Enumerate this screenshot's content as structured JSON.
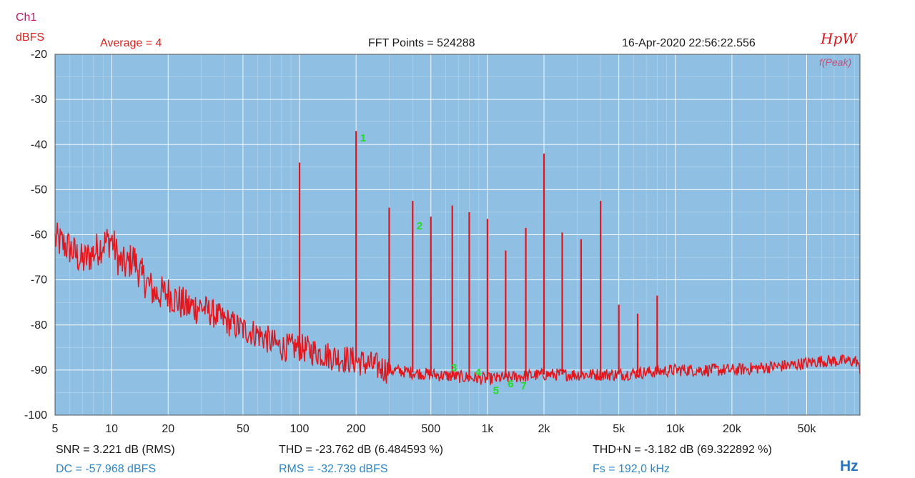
{
  "header": {
    "channel": "Ch1",
    "unit": "dBFS",
    "average": "Average = 4",
    "fft_points": "FFT Points = 524288",
    "timestamp": "16-Apr-2020 22:56:22.556",
    "logo": "HpW",
    "peak_label": "f(Peak)"
  },
  "stats": {
    "snr": "SNR = 3.221 dB (RMS)",
    "thd": "THD = -23.762 dB (6.484593 %)",
    "thdn": "THD+N = -3.182 dB (69.322892 %)",
    "dc": "DC = -57.968 dBFS",
    "rms": "RMS = -32.739 dBFS",
    "fs": "Fs = 192,0 kHz",
    "x_unit": "Hz"
  },
  "colors": {
    "plot_bg": "#8fbfe2",
    "grid": "#ffffff",
    "trace": "#e4161b",
    "marker": "#22dd22"
  },
  "chart_data": {
    "type": "line",
    "x_scale": "log",
    "xlim": [
      5,
      96000
    ],
    "ylim": [
      -100,
      -20
    ],
    "xlabel": "Hz",
    "ylabel": "dBFS",
    "y_ticks": [
      -20,
      -30,
      -40,
      -50,
      -60,
      -70,
      -80,
      -90,
      -100
    ],
    "x_ticks": [
      {
        "v": 5,
        "label": "5"
      },
      {
        "v": 10,
        "label": "10"
      },
      {
        "v": 20,
        "label": "20"
      },
      {
        "v": 50,
        "label": "50"
      },
      {
        "v": 100,
        "label": "100"
      },
      {
        "v": 200,
        "label": "200"
      },
      {
        "v": 500,
        "label": "500"
      },
      {
        "v": 1000,
        "label": "1k"
      },
      {
        "v": 2000,
        "label": "2k"
      },
      {
        "v": 5000,
        "label": "5k"
      },
      {
        "v": 10000,
        "label": "10k"
      },
      {
        "v": 20000,
        "label": "20k"
      },
      {
        "v": 50000,
        "label": "50k"
      }
    ],
    "noise_floor": [
      [
        5,
        -61
      ],
      [
        6,
        -63
      ],
      [
        7,
        -66
      ],
      [
        8,
        -64
      ],
      [
        9,
        -62
      ],
      [
        10,
        -61
      ],
      [
        11,
        -66
      ],
      [
        12,
        -67
      ],
      [
        13,
        -65
      ],
      [
        14,
        -68
      ],
      [
        15,
        -70
      ],
      [
        17,
        -73
      ],
      [
        20,
        -73
      ],
      [
        25,
        -76
      ],
      [
        30,
        -76
      ],
      [
        40,
        -79
      ],
      [
        50,
        -81
      ],
      [
        60,
        -82
      ],
      [
        80,
        -85
      ],
      [
        100,
        -85
      ],
      [
        150,
        -87
      ],
      [
        200,
        -88
      ],
      [
        300,
        -90
      ],
      [
        500,
        -91
      ],
      [
        1000,
        -92
      ],
      [
        2000,
        -91
      ],
      [
        5000,
        -91
      ],
      [
        10000,
        -90
      ],
      [
        20000,
        -90
      ],
      [
        40000,
        -89
      ],
      [
        60000,
        -88
      ],
      [
        80000,
        -88
      ],
      [
        93000,
        -88
      ],
      [
        96000,
        -91
      ]
    ],
    "peaks": [
      {
        "f": 12.5,
        "db": -64
      },
      {
        "f": 14.5,
        "db": -67
      },
      {
        "f": 100,
        "db": -44
      },
      {
        "f": 200,
        "db": -37
      },
      {
        "f": 300,
        "db": -54
      },
      {
        "f": 400,
        "db": -52.5
      },
      {
        "f": 500,
        "db": -56
      },
      {
        "f": 650,
        "db": -53.5
      },
      {
        "f": 800,
        "db": -55
      },
      {
        "f": 1000,
        "db": -56.5
      },
      {
        "f": 1250,
        "db": -63.5
      },
      {
        "f": 1600,
        "db": -58.5
      },
      {
        "f": 2000,
        "db": -42
      },
      {
        "f": 2500,
        "db": -59.5
      },
      {
        "f": 3150,
        "db": -61
      },
      {
        "f": 4000,
        "db": -52.5
      },
      {
        "f": 5000,
        "db": -75.5
      },
      {
        "f": 6300,
        "db": -77.5
      },
      {
        "f": 8000,
        "db": -73.5
      }
    ],
    "harmonic_markers": [
      {
        "label": "1",
        "f": 210,
        "db": -38.5
      },
      {
        "label": "2",
        "f": 420,
        "db": -58
      },
      {
        "label": "3",
        "f": 640,
        "db": -89.5
      },
      {
        "label": "4",
        "f": 860,
        "db": -90.5
      },
      {
        "label": "5",
        "f": 1070,
        "db": -94.5
      },
      {
        "label": "6",
        "f": 1280,
        "db": -93
      },
      {
        "label": "7",
        "f": 1500,
        "db": -93.5
      }
    ]
  }
}
